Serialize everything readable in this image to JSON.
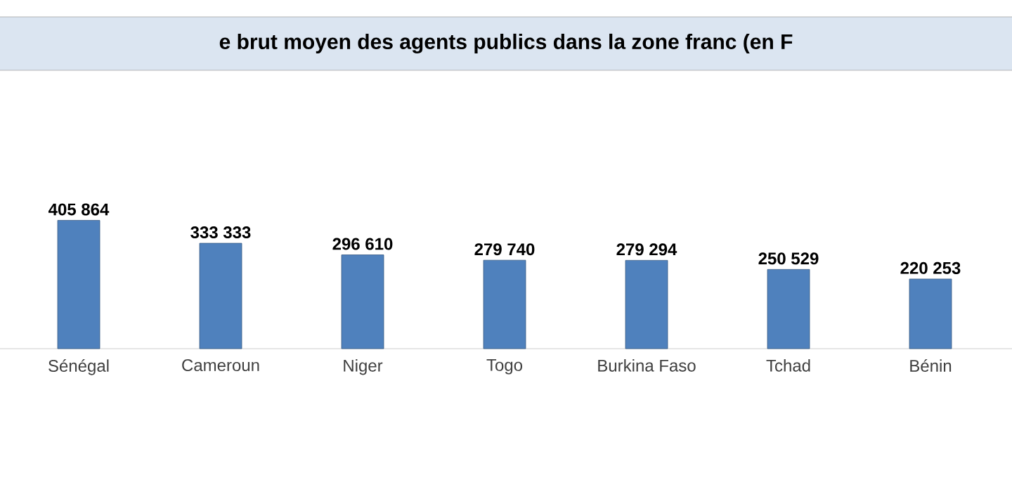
{
  "chart_data": {
    "type": "bar",
    "title": "e brut moyen des agents publics dans la zone franc (en F",
    "categories": [
      "Sénégal",
      "Cameroun",
      "Niger",
      "Togo",
      "Burkina Faso",
      "Tchad",
      "Bénin"
    ],
    "values": [
      405864,
      333333,
      296610,
      279740,
      279294,
      250529,
      220253
    ],
    "value_labels": [
      "405 864",
      "333 333",
      "296 610",
      "279 740",
      "279 294",
      "250 529",
      "220 253"
    ],
    "color": "#4f81bd"
  }
}
